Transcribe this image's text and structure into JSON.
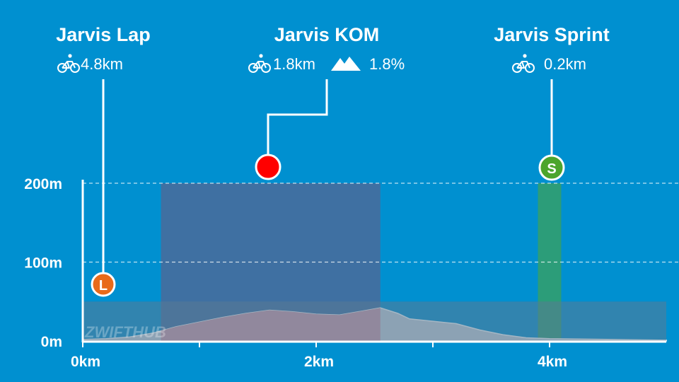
{
  "chart_data": {
    "type": "area",
    "xlim": [
      0,
      5.0
    ],
    "ylim": [
      0,
      210
    ],
    "x_ticks": [
      {
        "value": 0,
        "label": "0km"
      },
      {
        "value": 2,
        "label": "2km"
      },
      {
        "value": 4,
        "label": "4km"
      }
    ],
    "x_minor_ticks": [
      1,
      3
    ],
    "y_ticks": [
      {
        "value": 0,
        "label": "0m"
      },
      {
        "value": 100,
        "label": "100m"
      },
      {
        "value": 200,
        "label": "200m"
      }
    ],
    "y_gridlines": [
      100,
      200
    ],
    "elevation_profile": {
      "x": [
        0,
        0.2,
        0.4,
        0.6,
        0.8,
        1.0,
        1.2,
        1.4,
        1.6,
        1.8,
        2.0,
        2.2,
        2.4,
        2.55,
        2.7,
        2.8,
        3.0,
        3.2,
        3.4,
        3.6,
        3.8,
        4.0,
        4.5,
        5.0
      ],
      "y": [
        2,
        3,
        5,
        10,
        18,
        24,
        30,
        35,
        39,
        37,
        34,
        33,
        38,
        42,
        35,
        28,
        25,
        22,
        14,
        8,
        4,
        3,
        2,
        1
      ]
    },
    "segments": [
      {
        "name": "Jarvis Lap",
        "type": "lap",
        "badge": "L",
        "distance": "4.8km",
        "color": "#e86a1a",
        "start_km": 0,
        "end_km": 5.0
      },
      {
        "name": "Jarvis KOM",
        "type": "kom",
        "badge": "",
        "distance": "1.8km",
        "gradient": "1.8%",
        "color": "#ff0000",
        "start_km": 0.67,
        "end_km": 2.55
      },
      {
        "name": "Jarvis Sprint",
        "type": "sprint",
        "badge": "S",
        "distance": "0.2km",
        "color": "#4ca52c",
        "start_km": 3.9,
        "end_km": 4.1
      }
    ],
    "watermark": "ZWIFTHUB",
    "colors": {
      "background": "#0090d0",
      "profile_fill": "#c9d3dc",
      "kom_band": "#4a6b9a",
      "sprint_band": "#34a06a",
      "kom_profile": "#d69aa8"
    }
  }
}
